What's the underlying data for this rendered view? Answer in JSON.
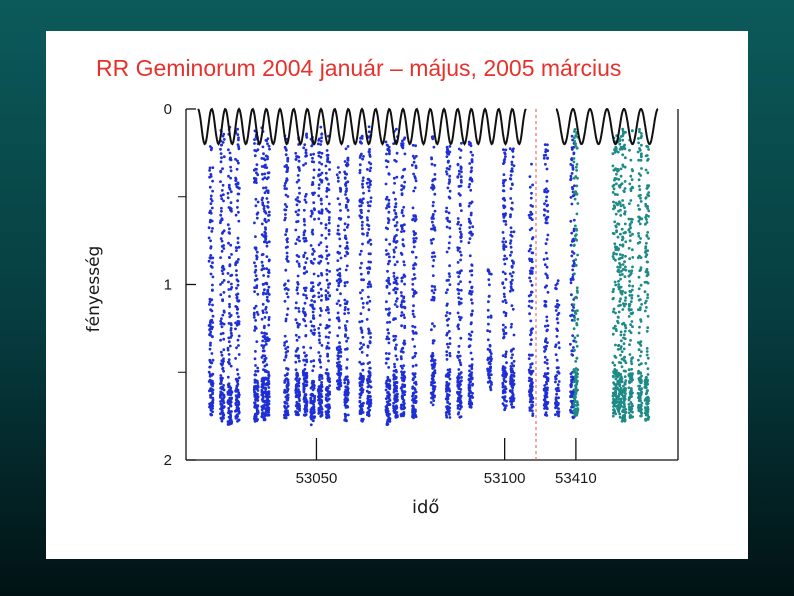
{
  "chart_data": {
    "type": "scatter",
    "title": "RR Geminorum 2004 január – május, 2005 március",
    "ylabel": "fényesség",
    "xlabel": "idő",
    "y_axis": {
      "inverted": true,
      "ylim": [
        0,
        2
      ],
      "tick_labels": [
        "0",
        "1",
        "2"
      ],
      "minor_ticks": [
        0.5,
        1.5
      ]
    },
    "x_axis": {
      "broken": true,
      "segments": [
        {
          "range": [
            53018,
            53107
          ],
          "tick_labels": [
            "53050",
            "53100"
          ],
          "tick_values": [
            53050,
            53100
          ]
        },
        {
          "range": [
            53400,
            53445
          ],
          "tick_labels": [
            "53410"
          ],
          "tick_values": [
            53410
          ]
        }
      ],
      "break_marker": "dashed-red-line"
    },
    "series": [
      {
        "color": "#1f2fd6",
        "segment": 0,
        "observation_nights": [
          {
            "t": 53022,
            "ymin": 0.2,
            "ymax": 1.75
          },
          {
            "t": 53025,
            "ymin": 0.1,
            "ymax": 1.78
          },
          {
            "t": 53027,
            "ymin": 0.1,
            "ymax": 1.8
          },
          {
            "t": 53029,
            "ymin": 0.1,
            "ymax": 1.78
          },
          {
            "t": 53034,
            "ymin": 0.1,
            "ymax": 1.8
          },
          {
            "t": 53036,
            "ymin": 0.1,
            "ymax": 1.78
          },
          {
            "t": 53037,
            "ymin": 0.15,
            "ymax": 1.75
          },
          {
            "t": 53042,
            "ymin": 0.15,
            "ymax": 1.76
          },
          {
            "t": 53045,
            "ymin": 0.15,
            "ymax": 1.76
          },
          {
            "t": 53047,
            "ymin": 0.1,
            "ymax": 1.75
          },
          {
            "t": 53049,
            "ymin": 0.15,
            "ymax": 1.8
          },
          {
            "t": 53051,
            "ymin": 0.1,
            "ymax": 1.76
          },
          {
            "t": 53053,
            "ymin": 0.15,
            "ymax": 1.76
          },
          {
            "t": 53056,
            "ymin": 0.3,
            "ymax": 1.6
          },
          {
            "t": 53058,
            "ymin": 0.2,
            "ymax": 1.78
          },
          {
            "t": 53062,
            "ymin": 0.15,
            "ymax": 1.78
          },
          {
            "t": 53064,
            "ymin": 0.1,
            "ymax": 1.75
          },
          {
            "t": 53069,
            "ymin": 0.15,
            "ymax": 1.8
          },
          {
            "t": 53071,
            "ymin": 0.1,
            "ymax": 1.76
          },
          {
            "t": 53073,
            "ymin": 0.15,
            "ymax": 1.75
          },
          {
            "t": 53076,
            "ymin": 0.2,
            "ymax": 1.76
          },
          {
            "t": 53081,
            "ymin": 0.15,
            "ymax": 1.7
          },
          {
            "t": 53085,
            "ymin": 0.2,
            "ymax": 1.76
          },
          {
            "t": 53088,
            "ymin": 0.15,
            "ymax": 1.76
          },
          {
            "t": 53091,
            "ymin": 0.15,
            "ymax": 1.7
          },
          {
            "t": 53096,
            "ymin": 0.9,
            "ymax": 1.6
          },
          {
            "t": 53100,
            "ymin": 0.2,
            "ymax": 1.72
          },
          {
            "t": 53102,
            "ymin": 0.2,
            "ymax": 1.7
          },
          {
            "t": 53107,
            "ymin": 0.3,
            "ymax": 1.75
          },
          {
            "t": 53111,
            "ymin": 0.2,
            "ymax": 1.76
          },
          {
            "t": 53114,
            "ymin": 0.95,
            "ymax": 1.75
          },
          {
            "t": 53118,
            "ymin": 0.15,
            "ymax": 1.76
          }
        ]
      },
      {
        "color": "#1d8a86",
        "segment": 1,
        "observation_nights": [
          {
            "t": 53410,
            "ymin": 0.1,
            "ymax": 1.75
          },
          {
            "t": 53427,
            "ymin": 0.15,
            "ymax": 1.75
          },
          {
            "t": 53429,
            "ymin": 0.15,
            "ymax": 1.76
          },
          {
            "t": 53431,
            "ymin": 0.1,
            "ymax": 1.78
          },
          {
            "t": 53434,
            "ymin": 0.1,
            "ymax": 1.76
          },
          {
            "t": 53438,
            "ymin": 0.1,
            "ymax": 1.75
          },
          {
            "t": 53441,
            "ymin": 0.2,
            "ymax": 1.78
          }
        ]
      }
    ],
    "pulsation_curve": {
      "color": "#111111",
      "baseline_y": 0.1,
      "amplitude": 0.1,
      "cycles_segment_0": 24,
      "cycles_segment_1": 6
    }
  }
}
